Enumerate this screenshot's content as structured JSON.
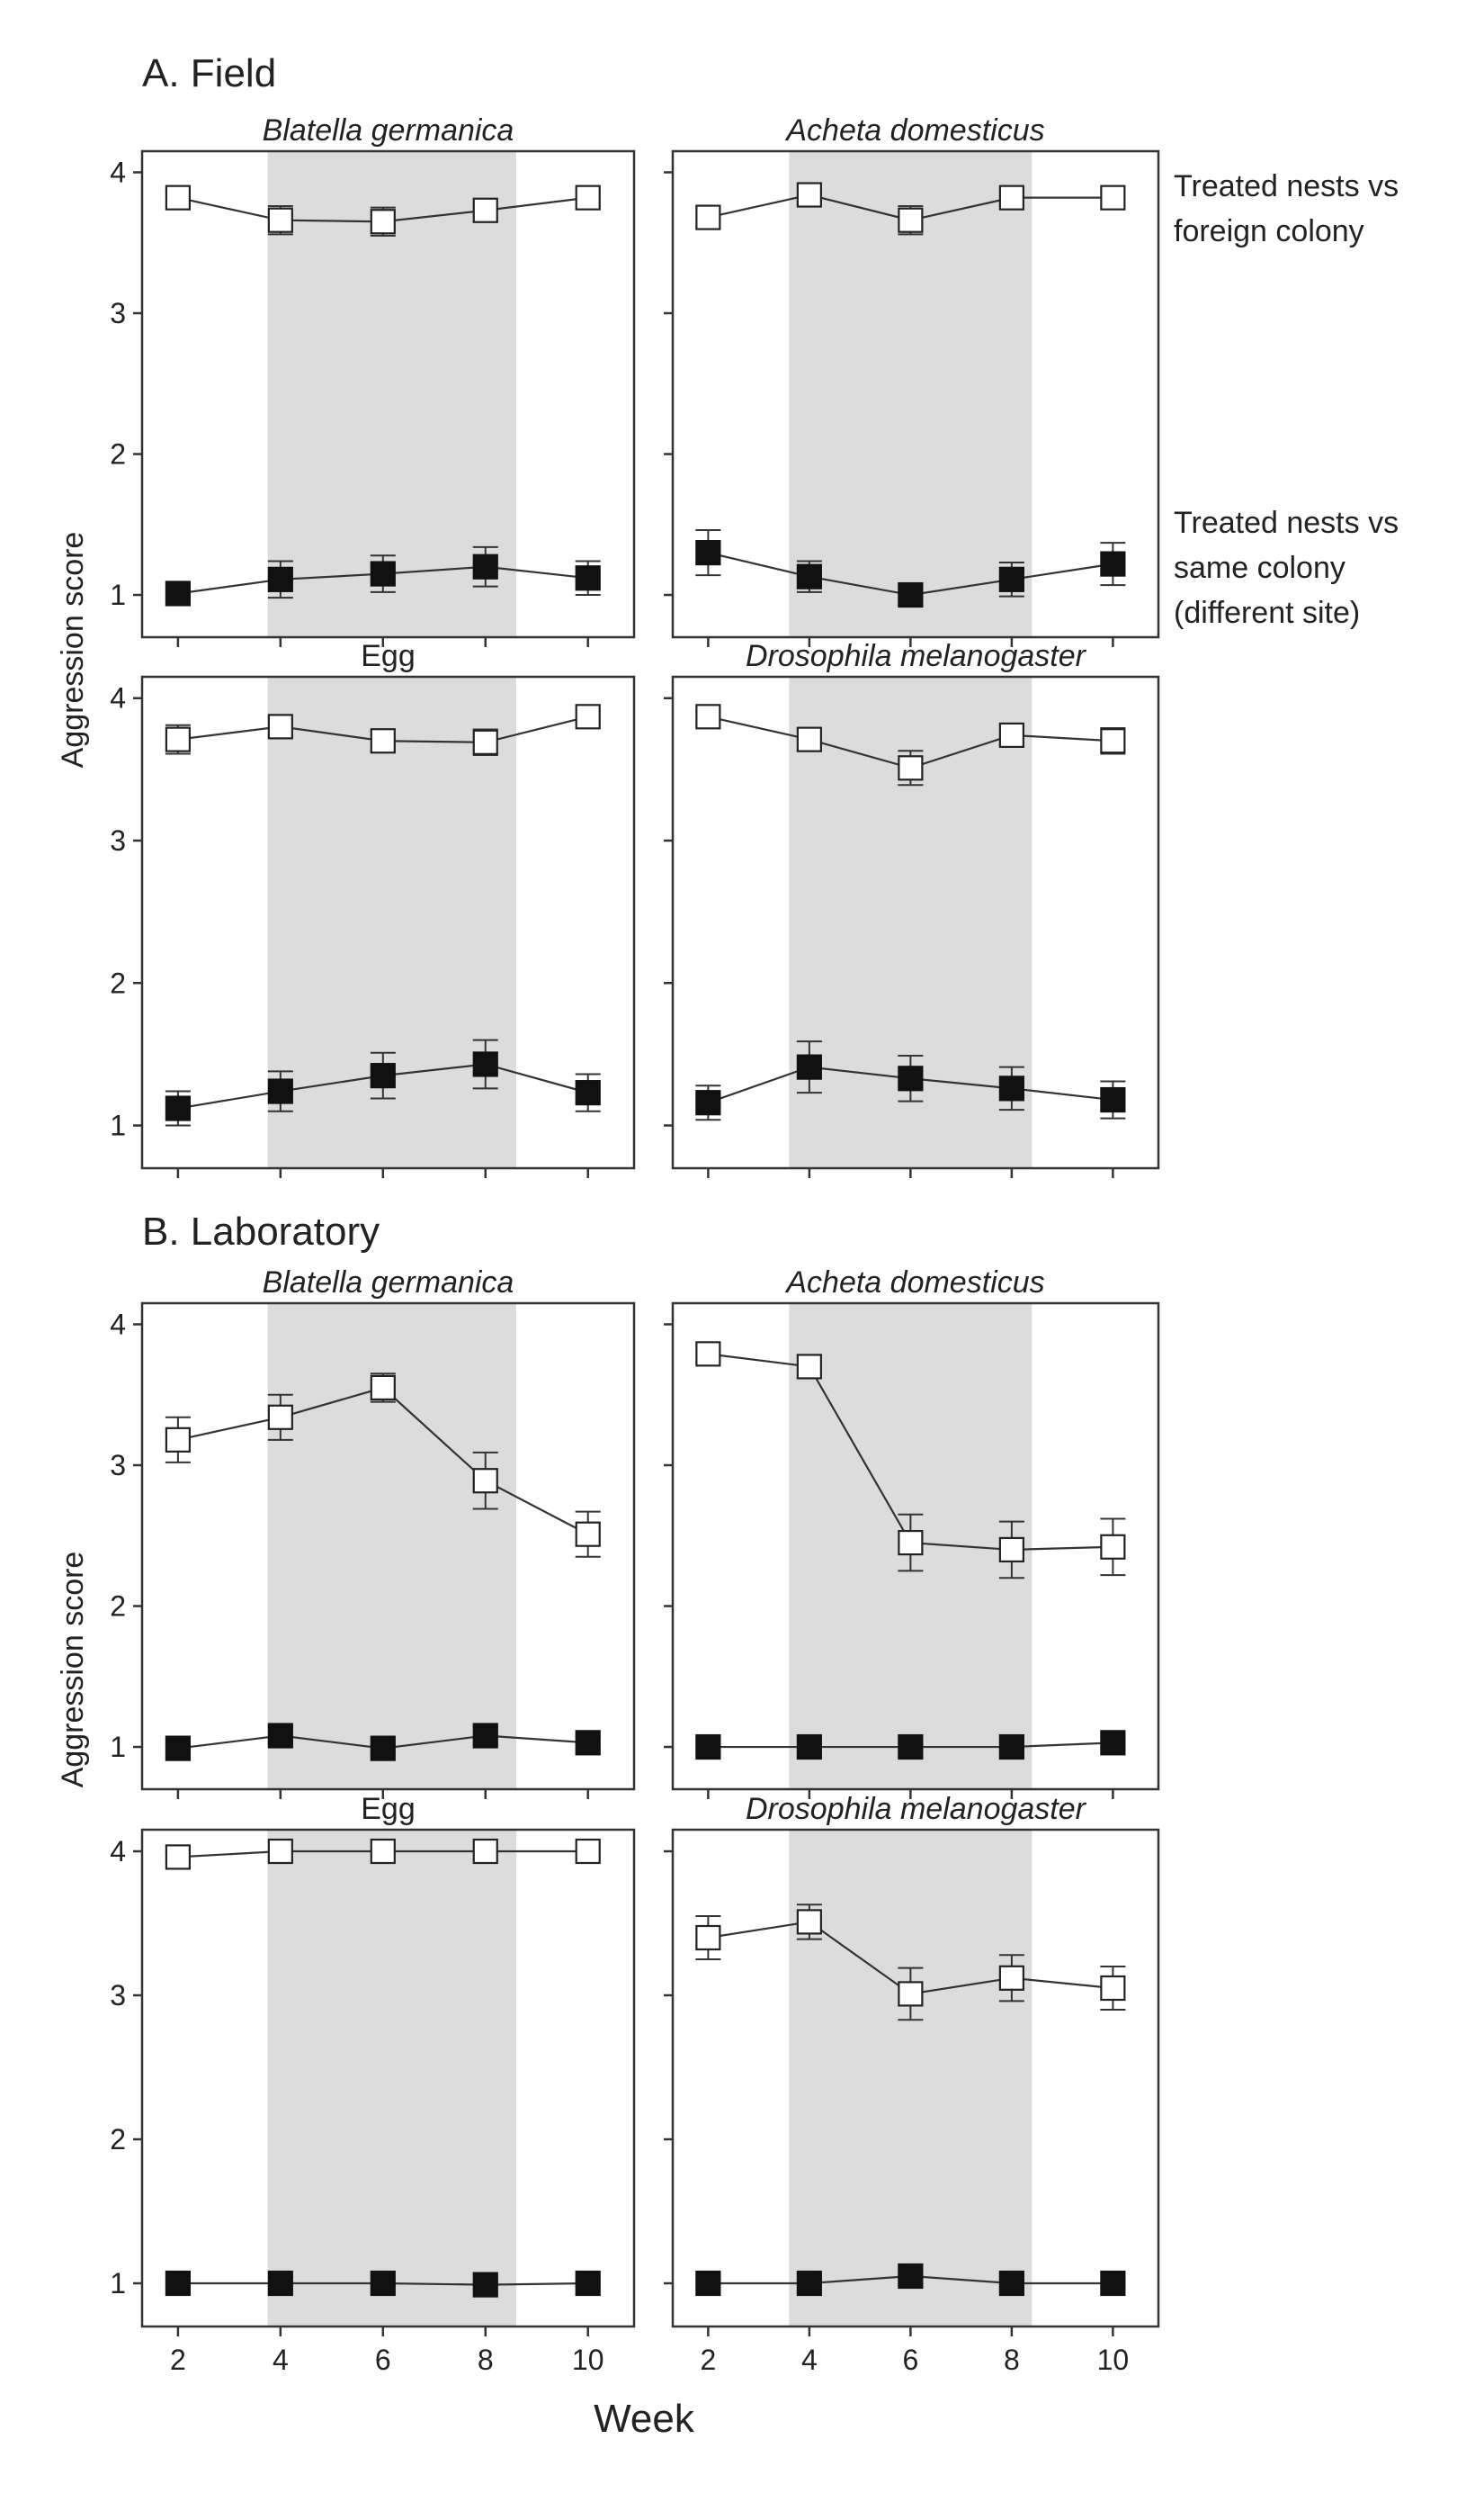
{
  "figure": {
    "ylabel": "Aggression score",
    "xlabel": "Week",
    "annotations": {
      "open_series": [
        "Treated nests vs",
        "foreign colony"
      ],
      "filled_series": [
        "Treated nests vs",
        "same colony",
        "(different site)"
      ]
    },
    "colors": {
      "shading": "#dcdcdc",
      "open_marker": "#ffffff",
      "filled_marker": "#111111",
      "line": "#333333"
    }
  },
  "sections": [
    {
      "title": "A. Field",
      "panels": [
        0,
        1,
        2,
        3
      ]
    },
    {
      "title": "B. Laboratory",
      "panels": [
        4,
        5,
        6,
        7
      ]
    }
  ],
  "chart_data": [
    {
      "type": "line",
      "title": "Blatella germanica",
      "italic": true,
      "section": "A. Field",
      "x": [
        2,
        4,
        6,
        8,
        10
      ],
      "xlim": [
        1.3,
        10.9
      ],
      "xticks": [
        2,
        4,
        6,
        8,
        10
      ],
      "ylim": [
        0.7,
        4.15
      ],
      "yticks": [
        1,
        2,
        3,
        4
      ],
      "shaded_x": [
        3.75,
        8.6
      ],
      "show_xticklabels": false,
      "series": [
        {
          "marker": "open",
          "values": [
            3.82,
            3.66,
            3.65,
            3.73,
            3.82
          ],
          "errors": [
            0.05,
            0.1,
            0.1,
            0.08,
            0.06
          ]
        },
        {
          "marker": "filled",
          "values": [
            1.01,
            1.11,
            1.15,
            1.2,
            1.12
          ],
          "errors": [
            0.04,
            0.13,
            0.13,
            0.14,
            0.12
          ]
        }
      ]
    },
    {
      "type": "line",
      "title": "Acheta domesticus",
      "italic": true,
      "section": "A. Field",
      "x": [
        2,
        4,
        6,
        8,
        10
      ],
      "xlim": [
        1.3,
        10.9
      ],
      "xticks": [
        2,
        4,
        6,
        8,
        10
      ],
      "ylim": [
        0.7,
        4.15
      ],
      "yticks": [
        1,
        2,
        3,
        4
      ],
      "shaded_x": [
        3.6,
        8.4
      ],
      "show_xticklabels": false,
      "series": [
        {
          "marker": "open",
          "values": [
            3.68,
            3.84,
            3.66,
            3.82,
            3.82
          ],
          "errors": [
            0.07,
            0.05,
            0.1,
            0.05,
            0.06
          ]
        },
        {
          "marker": "filled",
          "values": [
            1.3,
            1.13,
            1.0,
            1.11,
            1.22
          ],
          "errors": [
            0.16,
            0.11,
            0.07,
            0.12,
            0.15
          ]
        }
      ]
    },
    {
      "type": "line",
      "title": "Egg",
      "italic": false,
      "section": "A. Field",
      "x": [
        2,
        4,
        6,
        8,
        10
      ],
      "xlim": [
        1.3,
        10.9
      ],
      "xticks": [
        2,
        4,
        6,
        8,
        10
      ],
      "ylim": [
        0.7,
        4.15
      ],
      "yticks": [
        1,
        2,
        3,
        4
      ],
      "shaded_x": [
        3.75,
        8.6
      ],
      "show_xticklabels": false,
      "series": [
        {
          "marker": "open",
          "values": [
            3.71,
            3.8,
            3.7,
            3.69,
            3.87
          ],
          "errors": [
            0.1,
            0.06,
            0.07,
            0.09,
            0.04
          ]
        },
        {
          "marker": "filled",
          "values": [
            1.12,
            1.24,
            1.35,
            1.43,
            1.23
          ],
          "errors": [
            0.12,
            0.14,
            0.16,
            0.17,
            0.13
          ]
        }
      ]
    },
    {
      "type": "line",
      "title": "Drosophila melanogaster",
      "italic": true,
      "section": "A. Field",
      "x": [
        2,
        4,
        6,
        8,
        10
      ],
      "xlim": [
        1.3,
        10.9
      ],
      "xticks": [
        2,
        4,
        6,
        8,
        10
      ],
      "ylim": [
        0.7,
        4.15
      ],
      "yticks": [
        1,
        2,
        3,
        4
      ],
      "shaded_x": [
        3.6,
        8.4
      ],
      "show_xticklabels": false,
      "series": [
        {
          "marker": "open",
          "values": [
            3.87,
            3.71,
            3.51,
            3.74,
            3.7
          ],
          "errors": [
            0.04,
            0.08,
            0.12,
            0.07,
            0.09
          ]
        },
        {
          "marker": "filled",
          "values": [
            1.16,
            1.41,
            1.33,
            1.26,
            1.18
          ],
          "errors": [
            0.12,
            0.18,
            0.16,
            0.15,
            0.13
          ]
        }
      ]
    },
    {
      "type": "line",
      "title": "Blatella germanica",
      "italic": true,
      "section": "B. Laboratory",
      "x": [
        2,
        4,
        6,
        8,
        10
      ],
      "xlim": [
        1.3,
        10.9
      ],
      "xticks": [
        2,
        4,
        6,
        8,
        10
      ],
      "ylim": [
        0.7,
        4.15
      ],
      "yticks": [
        1,
        2,
        3,
        4
      ],
      "shaded_x": [
        3.75,
        8.6
      ],
      "show_xticklabels": false,
      "series": [
        {
          "marker": "open",
          "values": [
            3.18,
            3.34,
            3.55,
            2.89,
            2.51
          ],
          "errors": [
            0.16,
            0.16,
            0.1,
            0.2,
            0.16
          ]
        },
        {
          "marker": "filled",
          "values": [
            0.99,
            1.08,
            0.99,
            1.08,
            1.03
          ],
          "errors": [
            0.03,
            0.06,
            0.03,
            0.06,
            0.05
          ]
        }
      ]
    },
    {
      "type": "line",
      "title": "Acheta domesticus",
      "italic": true,
      "section": "B. Laboratory",
      "x": [
        2,
        4,
        6,
        8,
        10
      ],
      "xlim": [
        1.3,
        10.9
      ],
      "xticks": [
        2,
        4,
        6,
        8,
        10
      ],
      "ylim": [
        0.7,
        4.15
      ],
      "yticks": [
        1,
        2,
        3,
        4
      ],
      "shaded_x": [
        3.6,
        8.4
      ],
      "show_xticklabels": false,
      "series": [
        {
          "marker": "open",
          "values": [
            3.79,
            3.7,
            2.45,
            2.4,
            2.42
          ],
          "errors": [
            0.06,
            0.08,
            0.2,
            0.2,
            0.2
          ]
        },
        {
          "marker": "filled",
          "values": [
            1.0,
            1.0,
            1.0,
            1.0,
            1.03
          ],
          "errors": [
            0.0,
            0.0,
            0.0,
            0.0,
            0.04
          ]
        }
      ]
    },
    {
      "type": "line",
      "title": "Egg",
      "italic": false,
      "section": "B. Laboratory",
      "x": [
        2,
        4,
        6,
        8,
        10
      ],
      "xlim": [
        1.3,
        10.9
      ],
      "xticks": [
        2,
        4,
        6,
        8,
        10
      ],
      "ylim": [
        0.7,
        4.15
      ],
      "yticks": [
        1,
        2,
        3,
        4
      ],
      "shaded_x": [
        3.75,
        8.6
      ],
      "show_xticklabels": true,
      "series": [
        {
          "marker": "open",
          "values": [
            3.96,
            4.0,
            4.0,
            4.0,
            4.0
          ],
          "errors": [
            0.04,
            0.0,
            0.0,
            0.0,
            0.0
          ]
        },
        {
          "marker": "filled",
          "values": [
            1.0,
            1.0,
            1.0,
            0.99,
            1.0
          ],
          "errors": [
            0.0,
            0.0,
            0.0,
            0.0,
            0.0
          ]
        }
      ]
    },
    {
      "type": "line",
      "title": "Drosophila melanogaster",
      "italic": true,
      "section": "B. Laboratory",
      "x": [
        2,
        4,
        6,
        8,
        10
      ],
      "xlim": [
        1.3,
        10.9
      ],
      "xticks": [
        2,
        4,
        6,
        8,
        10
      ],
      "ylim": [
        0.7,
        4.15
      ],
      "yticks": [
        1,
        2,
        3,
        4
      ],
      "shaded_x": [
        3.6,
        8.4
      ],
      "show_xticklabels": true,
      "series": [
        {
          "marker": "open",
          "values": [
            3.4,
            3.51,
            3.01,
            3.12,
            3.05
          ],
          "errors": [
            0.15,
            0.12,
            0.18,
            0.16,
            0.15
          ]
        },
        {
          "marker": "filled",
          "values": [
            1.0,
            1.0,
            1.05,
            1.0,
            1.0
          ],
          "errors": [
            0.0,
            0.0,
            0.04,
            0.0,
            0.0
          ]
        }
      ]
    }
  ]
}
